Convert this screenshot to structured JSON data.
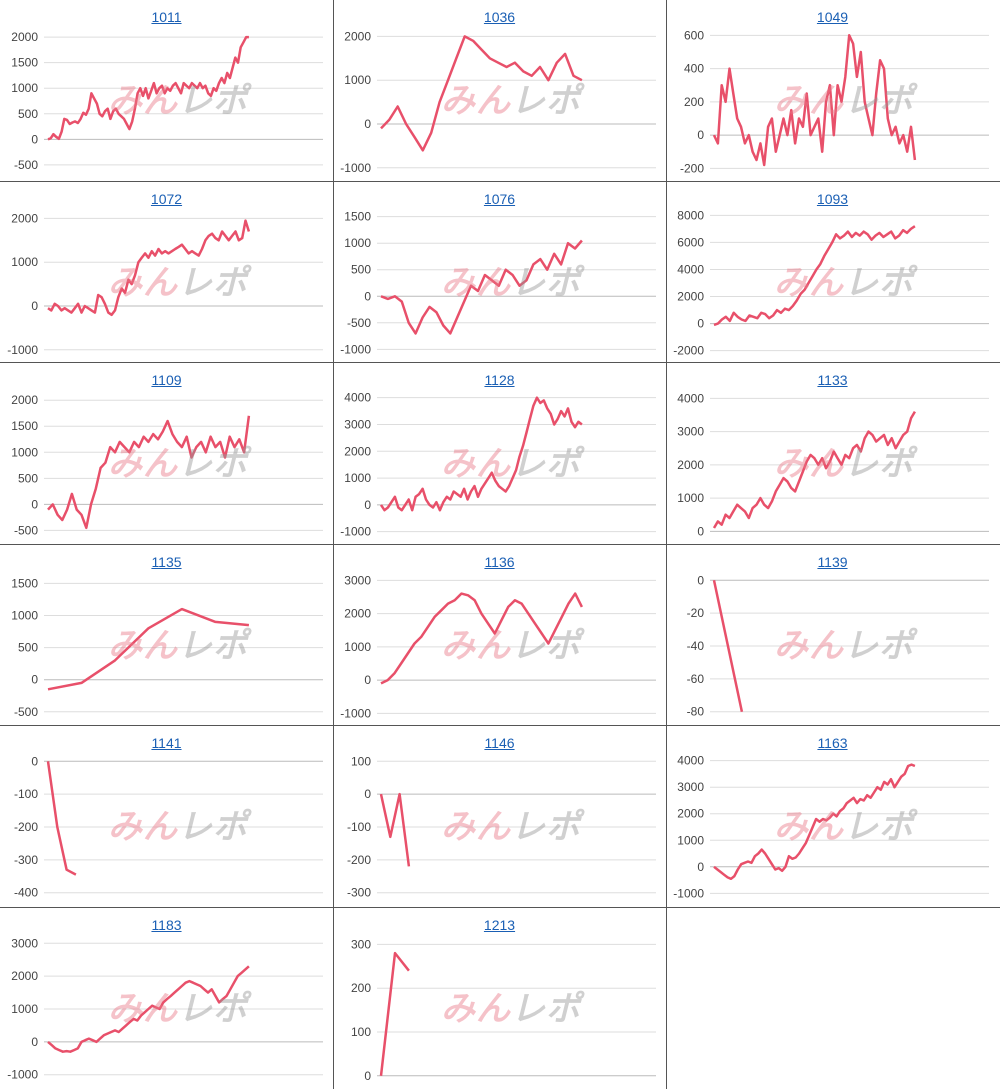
{
  "watermark": {
    "part1": "みん",
    "part2": "レポ"
  },
  "colors": {
    "line": "#e8506a",
    "grid": "#dddddd",
    "axis": "#bbbbbb",
    "tick_text": "#444444",
    "link": "#1a5fb4",
    "border": "#555555"
  },
  "chart_data": [
    {
      "type": "line",
      "title": "1011",
      "ylim": [
        -600,
        2100
      ],
      "yticks": [
        -500,
        0,
        500,
        1000,
        1500,
        2000
      ],
      "values": [
        0,
        20,
        100,
        50,
        10,
        150,
        400,
        380,
        300,
        330,
        350,
        320,
        400,
        520,
        480,
        600,
        900,
        800,
        700,
        500,
        450,
        550,
        600,
        400,
        550,
        600,
        500,
        450,
        400,
        300,
        200,
        350,
        600,
        900,
        1000,
        850,
        1000,
        800,
        950,
        1100,
        900,
        1000,
        1050,
        900,
        1000,
        950,
        1050,
        1100,
        1000,
        900,
        1100,
        1050,
        1000,
        1100,
        1050,
        1000,
        1100,
        1000,
        1050,
        900,
        850,
        1000,
        950,
        1100,
        1200,
        1100,
        1300,
        1200,
        1400,
        1600,
        1500,
        1800,
        1900,
        2000,
        2000
      ]
    },
    {
      "type": "line",
      "title": "1036",
      "ylim": [
        -1050,
        2100
      ],
      "yticks": [
        -1000,
        0,
        1000,
        2000
      ],
      "values": [
        -100,
        100,
        400,
        0,
        -300,
        -600,
        -200,
        500,
        1000,
        1500,
        2000,
        1900,
        1700,
        1500,
        1400,
        1300,
        1400,
        1200,
        1100,
        1300,
        1000,
        1400,
        1600,
        1100,
        1000
      ]
    },
    {
      "type": "line",
      "title": "1049",
      "ylim": [
        -210,
        620
      ],
      "yticks": [
        -200,
        0,
        200,
        400,
        600
      ],
      "values": [
        0,
        -50,
        300,
        200,
        400,
        250,
        100,
        50,
        -50,
        0,
        -100,
        -150,
        -50,
        -180,
        50,
        100,
        -100,
        0,
        100,
        0,
        150,
        -50,
        100,
        50,
        250,
        0,
        50,
        100,
        -100,
        200,
        300,
        0,
        300,
        200,
        350,
        600,
        550,
        350,
        500,
        200,
        100,
        0,
        250,
        450,
        400,
        100,
        0,
        50,
        -50,
        0,
        -100,
        50,
        -150
      ]
    },
    {
      "type": "line",
      "title": "1072",
      "ylim": [
        -1050,
        2100
      ],
      "yticks": [
        -1000,
        0,
        1000,
        2000
      ],
      "values": [
        -50,
        -100,
        50,
        0,
        -100,
        -50,
        -100,
        -150,
        -50,
        50,
        -150,
        0,
        -50,
        -100,
        -150,
        250,
        200,
        50,
        -150,
        -200,
        -100,
        200,
        400,
        300,
        600,
        500,
        700,
        1000,
        1100,
        1200,
        1100,
        1250,
        1150,
        1300,
        1200,
        1250,
        1200,
        1250,
        1300,
        1350,
        1400,
        1300,
        1200,
        1250,
        1200,
        1150,
        1300,
        1500,
        1600,
        1650,
        1550,
        1500,
        1700,
        1600,
        1500,
        1600,
        1700,
        1500,
        1550,
        1950,
        1700
      ]
    },
    {
      "type": "line",
      "title": "1076",
      "ylim": [
        -1050,
        1550
      ],
      "yticks": [
        -1000,
        -500,
        0,
        500,
        1000,
        1500
      ],
      "values": [
        0,
        -50,
        0,
        -100,
        -500,
        -700,
        -400,
        -200,
        -300,
        -550,
        -700,
        -400,
        -100,
        200,
        100,
        400,
        300,
        200,
        500,
        400,
        200,
        300,
        600,
        700,
        500,
        800,
        600,
        1000,
        900,
        1050
      ]
    },
    {
      "type": "line",
      "title": "1093",
      "ylim": [
        -2100,
        8100
      ],
      "yticks": [
        -2000,
        0,
        2000,
        4000,
        6000,
        8000
      ],
      "values": [
        -100,
        0,
        300,
        500,
        200,
        800,
        500,
        300,
        200,
        600,
        500,
        400,
        800,
        700,
        400,
        600,
        1000,
        800,
        1100,
        1000,
        1300,
        1700,
        2200,
        2500,
        3000,
        3500,
        4000,
        4400,
        5000,
        5500,
        6000,
        6600,
        6300,
        6500,
        6800,
        6400,
        6700,
        6500,
        6800,
        6600,
        6200,
        6500,
        6700,
        6400,
        6600,
        6800,
        6300,
        6500,
        6900,
        6700,
        7000,
        7200
      ]
    },
    {
      "type": "line",
      "title": "1109",
      "ylim": [
        -550,
        2100
      ],
      "yticks": [
        -500,
        0,
        500,
        1000,
        1500,
        2000
      ],
      "values": [
        -100,
        0,
        -200,
        -300,
        -100,
        200,
        -100,
        -200,
        -450,
        0,
        300,
        700,
        800,
        1100,
        1000,
        1200,
        1100,
        1000,
        1200,
        1100,
        1300,
        1200,
        1350,
        1250,
        1400,
        1600,
        1350,
        1200,
        1100,
        1300,
        900,
        1100,
        1200,
        1000,
        1300,
        1100,
        1200,
        900,
        1300,
        1100,
        1250,
        1000,
        1700
      ]
    },
    {
      "type": "line",
      "title": "1128",
      "ylim": [
        -1050,
        4100
      ],
      "yticks": [
        -1000,
        0,
        1000,
        2000,
        3000,
        4000
      ],
      "values": [
        0,
        -200,
        -100,
        100,
        300,
        -100,
        -200,
        0,
        200,
        -200,
        300,
        400,
        600,
        200,
        0,
        -100,
        100,
        -200,
        100,
        300,
        200,
        500,
        400,
        300,
        600,
        200,
        500,
        700,
        300,
        600,
        800,
        1000,
        1200,
        900,
        700,
        600,
        500,
        700,
        1000,
        1300,
        1800,
        2200,
        2700,
        3200,
        3700,
        4000,
        3800,
        3900,
        3600,
        3400,
        3000,
        3200,
        3500,
        3300,
        3600,
        3100,
        2900,
        3100,
        3000
      ]
    },
    {
      "type": "line",
      "title": "1133",
      "ylim": [
        -50,
        4100
      ],
      "yticks": [
        0,
        1000,
        2000,
        3000,
        4000
      ],
      "values": [
        100,
        300,
        200,
        500,
        400,
        600,
        800,
        700,
        600,
        400,
        700,
        800,
        1000,
        800,
        700,
        900,
        1200,
        1400,
        1600,
        1500,
        1300,
        1200,
        1500,
        1800,
        2100,
        2300,
        2200,
        2000,
        2200,
        1900,
        2100,
        2400,
        2200,
        2000,
        2300,
        2200,
        2500,
        2600,
        2400,
        2800,
        3000,
        2900,
        2700,
        2800,
        2900,
        2600,
        2800,
        2500,
        2700,
        2900,
        3000,
        3400,
        3600
      ]
    },
    {
      "type": "line",
      "title": "1135",
      "ylim": [
        -550,
        1600
      ],
      "yticks": [
        -500,
        0,
        500,
        1000,
        1500
      ],
      "values": [
        -150,
        -50,
        300,
        800,
        1100,
        900,
        850
      ]
    },
    {
      "type": "line",
      "title": "1136",
      "ylim": [
        -1050,
        3100
      ],
      "yticks": [
        -1000,
        0,
        1000,
        2000,
        3000
      ],
      "values": [
        -100,
        0,
        200,
        500,
        800,
        1100,
        1300,
        1600,
        1900,
        2100,
        2300,
        2400,
        2600,
        2550,
        2400,
        2000,
        1700,
        1400,
        1800,
        2200,
        2400,
        2300,
        2000,
        1700,
        1400,
        1100,
        1500,
        1900,
        2300,
        2600,
        2200
      ]
    },
    {
      "type": "line",
      "title": "1139",
      "ylim": [
        -82,
        2
      ],
      "yticks": [
        -80,
        -60,
        -40,
        -20,
        0
      ],
      "values": [
        0,
        -80
      ]
    },
    {
      "type": "line",
      "title": "1141",
      "ylim": [
        -410,
        10
      ],
      "yticks": [
        -400,
        -300,
        -200,
        -100,
        0
      ],
      "values": [
        0,
        -200,
        -330,
        -345
      ]
    },
    {
      "type": "line",
      "title": "1146",
      "ylim": [
        -310,
        110
      ],
      "yticks": [
        -300,
        -200,
        -100,
        0,
        100
      ],
      "values": [
        0,
        -130,
        0,
        -220
      ]
    },
    {
      "type": "line",
      "title": "1163",
      "ylim": [
        -1100,
        4100
      ],
      "yticks": [
        -1000,
        0,
        1000,
        2000,
        3000,
        4000
      ],
      "values": [
        0,
        -100,
        -200,
        -300,
        -400,
        -450,
        -350,
        -100,
        100,
        150,
        200,
        150,
        400,
        500,
        650,
        500,
        300,
        100,
        -100,
        -50,
        -150,
        0,
        400,
        300,
        350,
        500,
        700,
        900,
        1200,
        1500,
        1800,
        1700,
        1800,
        1750,
        1850,
        2000,
        1900,
        2100,
        2200,
        2400,
        2500,
        2600,
        2400,
        2550,
        2500,
        2700,
        2600,
        2800,
        3000,
        2900,
        3200,
        3100,
        3300,
        3000,
        3200,
        3400,
        3500,
        3800,
        3850,
        3800
      ]
    },
    {
      "type": "line",
      "title": "1183",
      "ylim": [
        -1100,
        3100
      ],
      "yticks": [
        -1000,
        0,
        1000,
        2000,
        3000
      ],
      "values": [
        0,
        -100,
        -200,
        -250,
        -300,
        -280,
        -300,
        -250,
        -200,
        0,
        50,
        100,
        50,
        0,
        100,
        200,
        250,
        300,
        350,
        300,
        400,
        500,
        600,
        700,
        650,
        800,
        900,
        1000,
        1100,
        1050,
        1000,
        1200,
        1300,
        1400,
        1500,
        1600,
        1700,
        1800,
        1850,
        1800,
        1750,
        1700,
        1600,
        1500,
        1600,
        1400,
        1200,
        1300,
        1400,
        1600,
        1800,
        2000,
        2100,
        2200,
        2300
      ]
    },
    {
      "type": "line",
      "title": "1213",
      "ylim": [
        -5,
        310
      ],
      "yticks": [
        0,
        100,
        200,
        300
      ],
      "values": [
        0,
        280,
        240
      ]
    }
  ]
}
